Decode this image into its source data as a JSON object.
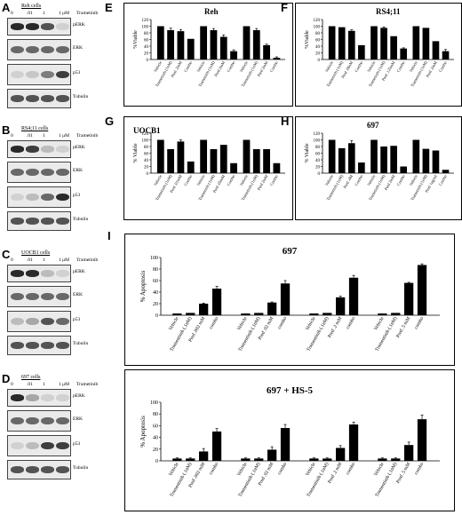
{
  "western_blots": [
    {
      "letter": "A",
      "title": "Reh cells",
      "concentrations": [
        "0",
        ".01",
        "1",
        "1 μM"
      ],
      "drug": "Trametinib",
      "bands": [
        "pERK",
        "ERK",
        "p53",
        "Tubulin"
      ]
    },
    {
      "letter": "B",
      "title": "RS4;11 cells",
      "concentrations": [
        "0",
        ".01",
        "1",
        "1 μM"
      ],
      "drug": "Trametinib",
      "bands": [
        "pERK",
        "ERK",
        "p53",
        "Tubulin"
      ]
    },
    {
      "letter": "C",
      "title": "UOCB1 cells",
      "concentrations": [
        "0",
        ".01",
        "1",
        "1 μM"
      ],
      "drug": "Trametinib",
      "bands": [
        "pERK",
        "ERK",
        "p53",
        "Tubulin"
      ]
    },
    {
      "letter": "D",
      "title": "697 cells",
      "concentrations": [
        "0",
        ".01",
        "1",
        "1 μM"
      ],
      "drug": "Trametinib",
      "bands": [
        "pERK",
        "ERK",
        "p53",
        "Tubulin"
      ]
    }
  ],
  "chart_data": [
    {
      "panel": "E",
      "type": "bar",
      "title": "Reh",
      "ylabel": "%Viable",
      "ylim": [
        0,
        120
      ],
      "yticks": [
        0,
        20,
        40,
        60,
        80,
        100,
        120
      ],
      "categories": [
        "Vehicle",
        "Trametinib (1nM)",
        "Pred .2mM",
        "Combo",
        "Vehicle",
        "Trametinib (1nM)",
        "Pred 2mM",
        "Combo",
        "Vehicle",
        "Trametinib (1nM)",
        "Pred 2mM",
        "Combo"
      ],
      "values": [
        100,
        88,
        85,
        62,
        100,
        88,
        68,
        25,
        100,
        88,
        43,
        5
      ],
      "errors": [
        0,
        6,
        5,
        0,
        0,
        5,
        6,
        4,
        0,
        5,
        3,
        3
      ]
    },
    {
      "panel": "F",
      "type": "bar",
      "title": "RS4;11",
      "ylabel": "%Viable",
      "ylim": [
        0,
        120
      ],
      "yticks": [
        0,
        20,
        40,
        60,
        80,
        100,
        120
      ],
      "categories": [
        "Vehicle",
        "Trametinib (1nM)",
        "Pred .06nM",
        "Combo",
        "Vehicle",
        "Trametinib (1nM)",
        "Pred .125mM",
        "Combo",
        "Vehicle",
        "Trametinib (1nM)",
        "Pred .2mM",
        "Combo"
      ],
      "values": [
        100,
        97,
        86,
        43,
        100,
        95,
        70,
        33,
        100,
        95,
        55,
        25
      ],
      "errors": [
        0,
        0,
        3,
        0,
        0,
        3,
        0,
        2,
        0,
        0,
        0,
        5
      ]
    },
    {
      "panel": "G",
      "type": "bar",
      "title": "UOCB1",
      "ylabel": "% Viable",
      "ylim": [
        0,
        120
      ],
      "yticks": [
        0,
        20,
        40,
        60,
        80,
        100,
        120
      ],
      "categories": [
        "Vehicle",
        "Trametinib (1nM)",
        "Pred .01mM",
        "Combo",
        "Vehicle",
        "Trametinib (1nM)",
        "Pred .05mM",
        "Combo",
        "Vehicle",
        "Trametinib (1nM)",
        "Pred 2mM",
        "Combo"
      ],
      "values": [
        100,
        72,
        95,
        35,
        100,
        72,
        85,
        30,
        100,
        72,
        72,
        30
      ],
      "errors": [
        0,
        0,
        5,
        0,
        0,
        0,
        0,
        0,
        0,
        0,
        0,
        0
      ]
    },
    {
      "panel": "H",
      "type": "bar",
      "title": "697",
      "ylabel": "% Viable",
      "ylim": [
        0,
        120
      ],
      "yticks": [
        0,
        20,
        40,
        60,
        80,
        100,
        120
      ],
      "categories": [
        "Vehicle",
        "Trametinib (1nM)",
        "Pred .4M",
        "Combo",
        "Vehicle",
        "Trametinib (1nM)",
        "Pred 2mM",
        "Combo",
        "Vehicle",
        "Trametinib (1nM)",
        "Pred 1ug/ml",
        "Combo"
      ],
      "values": [
        100,
        75,
        90,
        32,
        100,
        80,
        82,
        20,
        100,
        73,
        68,
        10
      ],
      "errors": [
        0,
        0,
        8,
        0,
        0,
        0,
        0,
        0,
        0,
        0,
        0,
        0
      ]
    },
    {
      "panel": "I",
      "type": "bar",
      "title": "697",
      "ylabel": "% Apoptosis",
      "ylim": [
        0,
        100
      ],
      "yticks": [
        0,
        20,
        40,
        60,
        80,
        100
      ],
      "categories": [
        "Vehicle",
        "Tramentinib (.1nM)",
        "Pred .002 mM",
        "combo",
        "Vehicle",
        "Tramentinib (.1nM)",
        "Pred .02 mM",
        "combo",
        "Vehicle",
        "Tramentinib (.1nM)",
        "Pred .2 mM",
        "combo",
        "Vehicle",
        "Tramentinib (.1nM)",
        "Pred .5 mM",
        "combo"
      ],
      "values": [
        3,
        4,
        20,
        46,
        3,
        4,
        22,
        55,
        3,
        4,
        31,
        65,
        3,
        4,
        56,
        87
      ],
      "errors": [
        0,
        0,
        1,
        4,
        0,
        0,
        1,
        5,
        0,
        0,
        2,
        4,
        0,
        0,
        1,
        2
      ]
    },
    {
      "panel": "I",
      "type": "bar",
      "title": "697 + HS-5",
      "ylabel": "% Apoptosis",
      "ylim": [
        0,
        100
      ],
      "yticks": [
        0,
        20,
        40,
        60,
        80,
        100
      ],
      "categories": [
        "Vehicle",
        "Tramentinib (.1nM)",
        "Pred .002 mM",
        "combo",
        "Vehicle",
        "Tramentinib (.1nM)",
        "Pred .02 mM",
        "combo",
        "Vehicle",
        "Tramentinib (.1nM)",
        "Pred .2 mM",
        "combo",
        "Vehicle",
        "Tramentinib (.1nM)",
        "Pred .5 mM",
        "combo"
      ],
      "values": [
        4,
        4,
        16,
        50,
        4,
        4,
        19,
        56,
        4,
        4,
        22,
        62,
        4,
        4,
        27,
        71
      ],
      "errors": [
        1,
        1,
        5,
        5,
        1,
        1,
        5,
        6,
        1,
        1,
        4,
        4,
        1,
        1,
        5,
        7
      ]
    }
  ],
  "panel_letters": {
    "I": "I"
  }
}
